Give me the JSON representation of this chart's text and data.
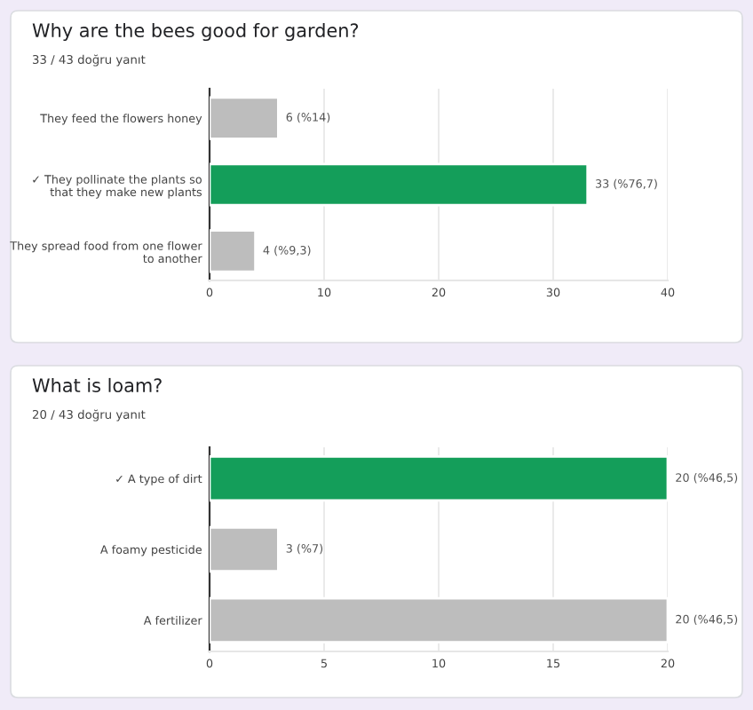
{
  "chart_data": [
    {
      "type": "bar",
      "orientation": "horizontal",
      "title": "Why are the bees good for garden?",
      "subtitle": "33 / 43 doğru yanıt",
      "categories": [
        "They feed the flowers honey",
        "✓ They pollinate the plants so\nthat they make new plants",
        "They spread food from one flower\nto another"
      ],
      "values": [
        6,
        33,
        4
      ],
      "colors": [
        "#bdbdbd",
        "#149e5a",
        "#bdbdbd"
      ],
      "value_labels": [
        "6 (%14)",
        "33 (%76,7)",
        "4 (%9,3)"
      ],
      "xlim": [
        0,
        40
      ],
      "xticks": [
        0,
        10,
        20,
        30,
        40
      ],
      "grid": "x"
    },
    {
      "type": "bar",
      "orientation": "horizontal",
      "title": "What is loam?",
      "subtitle": "20 / 43 doğru yanıt",
      "categories": [
        "✓ A type of dirt",
        "A foamy pesticide",
        "A fertilizer"
      ],
      "values": [
        20,
        3,
        20
      ],
      "colors": [
        "#149e5a",
        "#bdbdbd",
        "#bdbdbd"
      ],
      "value_labels": [
        "20 (%46,5)",
        "3 (%7)",
        "20 (%46,5)"
      ],
      "xlim": [
        0,
        20
      ],
      "xticks": [
        0,
        5,
        10,
        15,
        20
      ],
      "grid": "x"
    }
  ]
}
